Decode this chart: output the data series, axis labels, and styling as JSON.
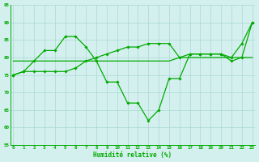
{
  "x": [
    0,
    1,
    2,
    3,
    4,
    5,
    6,
    7,
    8,
    9,
    10,
    11,
    12,
    13,
    14,
    15,
    16,
    17,
    18,
    19,
    20,
    21,
    22,
    23
  ],
  "main_line": [
    75,
    76,
    79,
    82,
    82,
    86,
    86,
    83,
    79,
    73,
    73,
    67,
    67,
    62,
    65,
    74,
    74,
    81,
    81,
    81,
    81,
    80,
    84,
    90
  ],
  "flat_line": [
    79,
    79,
    79,
    79,
    79,
    79,
    79,
    79,
    79,
    79,
    79,
    79,
    79,
    79,
    79,
    79,
    80,
    80,
    80,
    80,
    80,
    80,
    80,
    80
  ],
  "diag_line": [
    75,
    76,
    76,
    76,
    76,
    76,
    77,
    79,
    80,
    81,
    82,
    83,
    83,
    84,
    84,
    84,
    80,
    81,
    81,
    81,
    81,
    79,
    80,
    90
  ],
  "ylim": [
    55,
    95
  ],
  "xlim_min": -0.3,
  "xlim_max": 23.3,
  "yticks": [
    55,
    60,
    65,
    70,
    75,
    80,
    85,
    90,
    95
  ],
  "xticks": [
    0,
    1,
    2,
    3,
    4,
    5,
    6,
    7,
    8,
    9,
    10,
    11,
    12,
    13,
    14,
    15,
    16,
    17,
    18,
    19,
    20,
    21,
    22,
    23
  ],
  "xlabel": "Humidité relative (%)",
  "bg_color": "#d4f0ee",
  "grid_color": "#a8d8d4",
  "line_color": "#00aa00",
  "line_width": 0.9,
  "marker": "D",
  "marker_size": 1.8,
  "tick_fontsize": 4.2,
  "label_fontsize": 5.5
}
